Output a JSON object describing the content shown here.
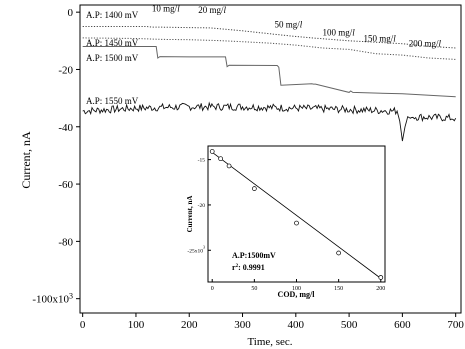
{
  "chart_data": [
    {
      "type": "line",
      "title": "",
      "xlabel": "Time, sec.",
      "ylabel": "Current, nA",
      "xlim": [
        -5,
        710
      ],
      "ylim": [
        -105000,
        2500
      ],
      "x_ticks": [
        0,
        100,
        200,
        300,
        400,
        500,
        600,
        700
      ],
      "x_tick_labels": [
        "0",
        "100",
        "200",
        "300",
        "400",
        "500",
        "600",
        "700"
      ],
      "y_ticks": [
        0,
        -20000,
        -40000,
        -60000,
        -80000,
        -100000
      ],
      "y_tick_labels": [
        "0",
        "-20",
        "-40",
        "-60",
        "-80",
        "-100x10"
      ],
      "y_tick_label_superscripts": [
        "",
        "",
        "",
        "",
        "",
        "3"
      ],
      "grid": false,
      "legend": "none",
      "series": [
        {
          "name": "A.P: 1400 mV",
          "style": "dotted",
          "color": "#444444",
          "x": [
            0,
            120,
            130,
            140,
            200,
            240,
            300,
            350,
            400,
            430,
            500,
            560,
            600,
            640,
            700
          ],
          "y": [
            -5000,
            -5000,
            -5200,
            -5200,
            -5400,
            -5500,
            -6500,
            -7500,
            -8500,
            -9000,
            -10000,
            -10600,
            -11000,
            -11800,
            -12500
          ]
        },
        {
          "name": "A.P: 1450 mV",
          "style": "dotted",
          "color": "#555555",
          "x": [
            0,
            100,
            150,
            200,
            250,
            300,
            350,
            400,
            450,
            500,
            550,
            600,
            650,
            700
          ],
          "y": [
            -9000,
            -9200,
            -9500,
            -9600,
            -9900,
            -10300,
            -10800,
            -11500,
            -12500,
            -13000,
            -14500,
            -15000,
            -16000,
            -16500
          ]
        },
        {
          "name": "A.P: 1500 mV",
          "style": "solid",
          "color": "#666666",
          "x": [
            0,
            138,
            141,
            145,
            200,
            268,
            271,
            275,
            365,
            368,
            372,
            430,
            433,
            437,
            500,
            503,
            507,
            600,
            700
          ],
          "y": [
            -12000,
            -12000,
            -16000,
            -15500,
            -15600,
            -15600,
            -19000,
            -18500,
            -18600,
            -19200,
            -25500,
            -25000,
            -25100,
            -25100,
            -28000,
            -27500,
            -28000,
            -28500,
            -29500
          ]
        },
        {
          "name": "A.P: 1550 mV",
          "style": "solid-noisy",
          "color": "#111111",
          "x": [
            0,
            100,
            200,
            300,
            400,
            500,
            590,
            595,
            600,
            605,
            610,
            615,
            620,
            700
          ],
          "y": [
            -34500,
            -33500,
            -33000,
            -33000,
            -33500,
            -34000,
            -34500,
            -38000,
            -45000,
            -40000,
            -36500,
            -37000,
            -36500,
            -37000
          ]
        }
      ],
      "annotations": [
        {
          "text": "10 mg/",
          "italic_suffix": "l",
          "at": [
            130,
            200
          ]
        },
        {
          "text": "20 mg/",
          "italic_suffix": "l",
          "at": [
            217,
            -300
          ]
        },
        {
          "text": "50 mg/",
          "italic_suffix": "l",
          "at": [
            360,
            -5300
          ]
        },
        {
          "text": "100 mg/",
          "italic_suffix": "l",
          "at": [
            450,
            -8200
          ]
        },
        {
          "text": "150 mg/",
          "italic_suffix": "l",
          "at": [
            527,
            -10300
          ]
        },
        {
          "text": "200 mg/",
          "italic_suffix": "l",
          "at": [
            612,
            -12000
          ]
        }
      ]
    },
    {
      "type": "scatter",
      "role": "inset",
      "xlabel": "COD, mg/l",
      "ylabel": "Current, nA",
      "xlim": [
        -5,
        205
      ],
      "ylim": [
        -28500,
        -13500
      ],
      "x_ticks": [
        0,
        50,
        100,
        150,
        200
      ],
      "x_tick_labels": [
        "0",
        "50",
        "100",
        "150",
        "200"
      ],
      "y_ticks": [
        -15000,
        -20000,
        -25000
      ],
      "y_tick_labels": [
        "-15",
        "-20",
        "-25x10"
      ],
      "y_tick_label_superscripts": [
        "",
        "",
        "3"
      ],
      "points": {
        "x": [
          0,
          10,
          20,
          50,
          100,
          150,
          200
        ],
        "y": [
          -14100,
          -14900,
          -15700,
          -18200,
          -22000,
          -25300,
          -28000
        ]
      },
      "fit_line": {
        "x": [
          0,
          200
        ],
        "y": [
          -14200,
          -28100
        ]
      },
      "annotation_lines": [
        "A.P:1500mV",
        "r",
        ": 0.9991"
      ],
      "annotation_superscript": "2"
    }
  ]
}
